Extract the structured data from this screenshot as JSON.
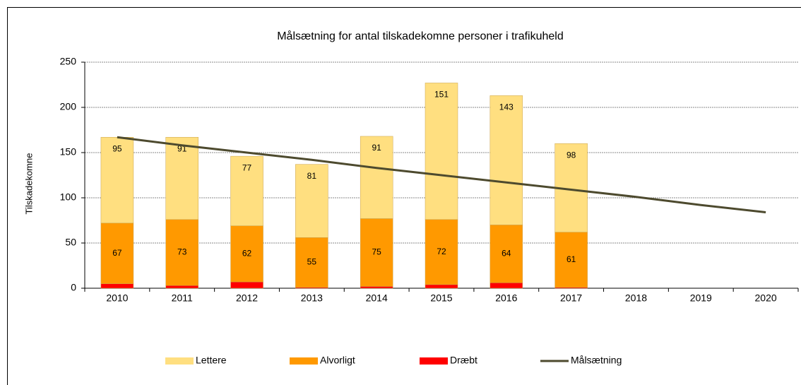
{
  "chart_data": {
    "type": "bar",
    "stacked": true,
    "title": "Målsætning for antal tilskadekomne personer i trafikuheld",
    "y_label": "Tilskadekomne",
    "categories": [
      "2010",
      "2011",
      "2012",
      "2013",
      "2014",
      "2015",
      "2016",
      "2017",
      "2018",
      "2019",
      "2020"
    ],
    "series": [
      {
        "name": "Lettere",
        "color": "#ffdf80",
        "values": [
          95,
          91,
          77,
          81,
          91,
          151,
          143,
          98,
          null,
          null,
          null
        ]
      },
      {
        "name": "Alvorligt",
        "color": "#ff9900",
        "values": [
          67,
          73,
          62,
          55,
          75,
          72,
          64,
          61,
          null,
          null,
          null
        ]
      },
      {
        "name": "Dræbt",
        "color": "#ff0000",
        "values": [
          5,
          3,
          7,
          1,
          2,
          4,
          6,
          1,
          null,
          null,
          null
        ]
      },
      {
        "name": "Målsætning",
        "type": "line",
        "color": "#4d4a2e",
        "values": [
          167,
          158,
          150,
          142,
          133,
          125,
          117,
          109,
          101,
          92,
          84
        ]
      }
    ],
    "ylim": [
      0,
      250
    ],
    "yticks": [
      0,
      50,
      100,
      150,
      200,
      250
    ],
    "grid": true,
    "legend": "bottom"
  }
}
